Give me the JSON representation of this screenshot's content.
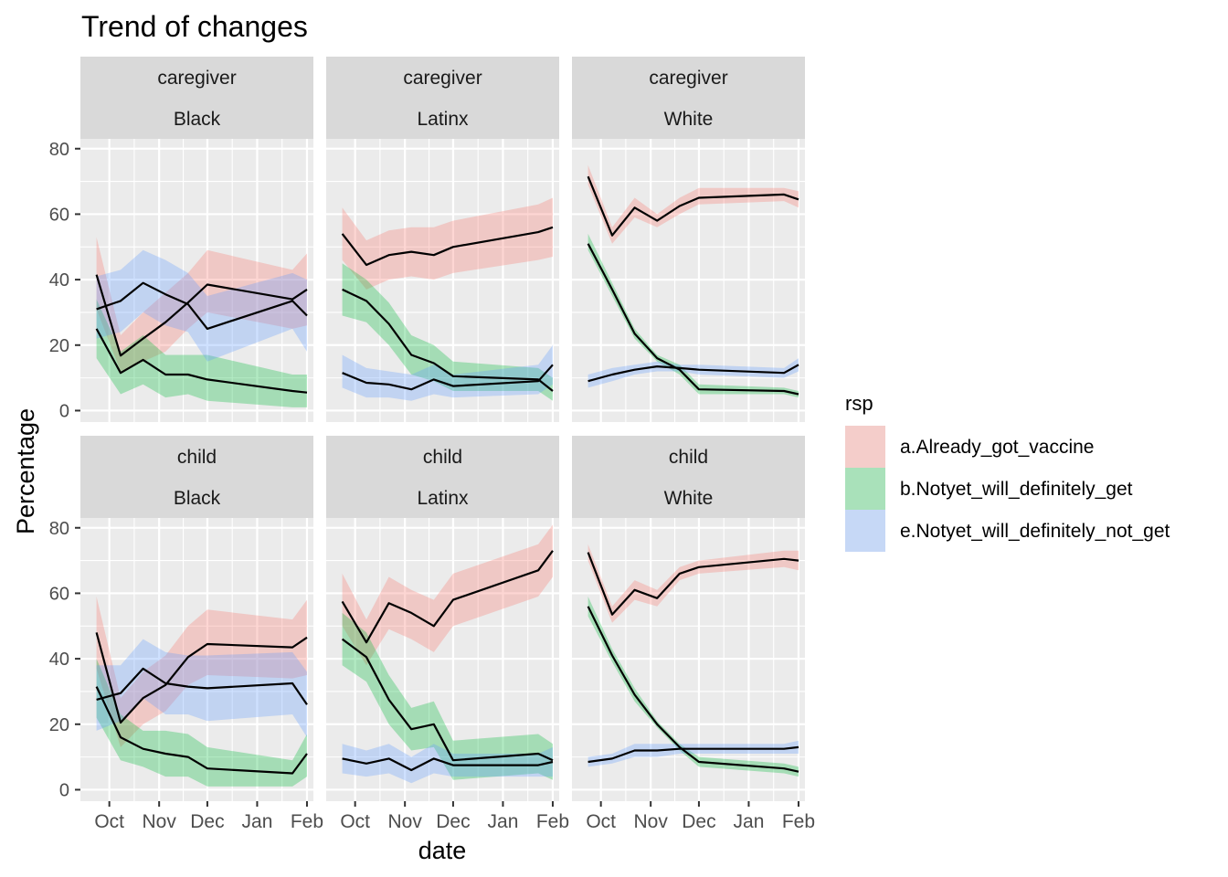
{
  "chart_data": {
    "type": "area",
    "title": "Trend of changes",
    "xlabel": "date",
    "ylabel": "Percentage",
    "x_ticks": [
      "Oct",
      "Nov",
      "Dec",
      "Jan",
      "Feb"
    ],
    "x_tick_dates": [
      "2021-10-01",
      "2021-11-01",
      "2021-12-01",
      "2022-01-01",
      "2022-02-01"
    ],
    "xlim": [
      "2021-09-13",
      "2022-02-05"
    ],
    "y_ticks": [
      0,
      20,
      40,
      60,
      80
    ],
    "ylim": [
      -3.5,
      83
    ],
    "grid": true,
    "legend": {
      "title": "rsp",
      "position": "right",
      "entries": [
        {
          "key": "a",
          "label": "a.Already_got_vaccine",
          "color": "#F8766D"
        },
        {
          "key": "b",
          "label": "b.Notyet_will_definitely_get",
          "color": "#00BA38"
        },
        {
          "key": "e",
          "label": "e.Notyet_will_definitely_not_get",
          "color": "#619CFF"
        }
      ]
    },
    "ribbon_alpha": 0.3,
    "line_color": "#000000",
    "panels": [
      {
        "strip_top": "caregiver",
        "strip_bottom": "Black",
        "x": [
          "2021-09-23",
          "2021-10-08",
          "2021-10-22",
          "2021-11-05",
          "2021-11-19",
          "2021-12-01",
          "2022-01-23",
          "2022-02-01"
        ],
        "series": [
          {
            "key": "a",
            "values": [
              41.5,
              16.8,
              22,
              27,
              33,
              38.5,
              34,
              37
            ],
            "lower": [
              31,
              12,
              15,
              18,
              25,
              30,
              25,
              26
            ],
            "upper": [
              53,
              23,
              30,
              36,
              42,
              49,
              43,
              48
            ]
          },
          {
            "key": "b",
            "values": [
              25,
              11.5,
              15.5,
              11,
              11,
              9.5,
              6,
              5.5
            ],
            "lower": [
              16,
              5,
              8,
              4,
              5,
              3,
              1,
              1
            ],
            "upper": [
              34,
              18,
              23,
              17,
              17,
              17,
              11,
              11
            ]
          },
          {
            "key": "e",
            "values": [
              31,
              33.5,
              39,
              35.5,
              32.5,
              25,
              33.5,
              29
            ],
            "lower": [
              22,
              24,
              30,
              26,
              24,
              15,
              25,
              18
            ],
            "upper": [
              41,
              43,
              49,
              46,
              42,
              35,
              42,
              40
            ]
          }
        ]
      },
      {
        "strip_top": "caregiver",
        "strip_bottom": "Latinx",
        "x": [
          "2021-09-23",
          "2021-10-08",
          "2021-10-22",
          "2021-11-05",
          "2021-11-19",
          "2021-12-01",
          "2022-01-23",
          "2022-02-01"
        ],
        "series": [
          {
            "key": "a",
            "values": [
              54,
              44.5,
              47.5,
              48.5,
              47.5,
              50,
              54.5,
              56
            ],
            "lower": [
              46,
              37,
              40,
              41,
              40,
              42,
              46,
              47
            ],
            "upper": [
              62,
              52,
              55,
              56,
              56,
              58,
              63,
              65
            ]
          },
          {
            "key": "b",
            "values": [
              37,
              33.5,
              26.5,
              17,
              14.5,
              10.5,
              9.5,
              6
            ],
            "lower": [
              29,
              27,
              20,
              11,
              9,
              6,
              6,
              3
            ],
            "upper": [
              45,
              40,
              33,
              23,
              20,
              15,
              13,
              10
            ]
          },
          {
            "key": "e",
            "values": [
              11.5,
              8.5,
              8,
              6.5,
              9.5,
              7.5,
              9,
              14
            ],
            "lower": [
              7,
              4,
              4,
              3,
              5,
              4,
              5,
              8
            ],
            "upper": [
              17,
              13,
              12,
              11,
              14,
              11,
              14,
              20
            ]
          }
        ]
      },
      {
        "strip_top": "caregiver",
        "strip_bottom": "White",
        "x": [
          "2021-09-23",
          "2021-10-08",
          "2021-10-22",
          "2021-11-05",
          "2021-11-19",
          "2021-12-01",
          "2022-01-23",
          "2022-02-01"
        ],
        "series": [
          {
            "key": "a",
            "values": [
              71.5,
              53.5,
              62,
              58,
              62.5,
              65,
              66,
              64.5
            ],
            "lower": [
              69,
              51,
              59,
              56,
              60,
              63,
              64,
              62
            ],
            "upper": [
              75,
              56,
              65,
              60,
              65,
              68,
              68,
              67
            ]
          },
          {
            "key": "b",
            "values": [
              51,
              37,
              23.5,
              16,
              12.5,
              6.5,
              6,
              5
            ],
            "lower": [
              49,
              35,
              22,
              15,
              11,
              5,
              5,
              4
            ],
            "upper": [
              54,
              39,
              25,
              17,
              14,
              8,
              7,
              6
            ]
          },
          {
            "key": "e",
            "values": [
              9,
              11,
              12.5,
              13.5,
              13,
              12.5,
              11.5,
              14
            ],
            "lower": [
              7,
              9,
              11,
              12,
              12,
              11,
              10,
              12
            ],
            "upper": [
              11,
              13,
              14,
              15,
              14,
              14,
              13,
              16
            ]
          }
        ]
      },
      {
        "strip_top": "child",
        "strip_bottom": "Black",
        "x": [
          "2021-09-23",
          "2021-10-08",
          "2021-10-22",
          "2021-11-05",
          "2021-11-19",
          "2021-12-01",
          "2022-01-23",
          "2022-02-01"
        ],
        "series": [
          {
            "key": "a",
            "values": [
              48,
              20.5,
              28,
              32,
              40.5,
              44.5,
              43.5,
              46.5
            ],
            "lower": [
              37,
              13,
              20,
              24,
              32,
              35,
              34,
              35
            ],
            "upper": [
              59,
              28,
              36,
              41,
              50,
              55,
              52,
              58
            ]
          },
          {
            "key": "b",
            "values": [
              31.5,
              16,
              12.5,
              11,
              10,
              6.5,
              5,
              11
            ],
            "lower": [
              22,
              9,
              7,
              4,
              4,
              1,
              1,
              4
            ],
            "upper": [
              40,
              23,
              18,
              18,
              17,
              13,
              9,
              17
            ]
          },
          {
            "key": "e",
            "values": [
              27.5,
              29.5,
              37,
              32.5,
              31.5,
              31,
              32.5,
              26
            ],
            "lower": [
              18,
              21,
              28,
              23,
              23,
              21,
              23,
              16
            ],
            "upper": [
              38,
              38,
              46,
              42,
              41,
              41,
              42,
              36
            ]
          }
        ]
      },
      {
        "strip_top": "child",
        "strip_bottom": "Latinx",
        "x": [
          "2021-09-23",
          "2021-10-08",
          "2021-10-22",
          "2021-11-05",
          "2021-11-19",
          "2021-12-01",
          "2022-01-23",
          "2022-02-01"
        ],
        "series": [
          {
            "key": "a",
            "values": [
              57.5,
              45,
              57,
              54,
              50,
              58,
              67,
              73
            ],
            "lower": [
              50,
              38,
              49,
              46,
              42,
              50,
              59,
              65
            ],
            "upper": [
              66,
              52,
              65,
              61,
              58,
              66,
              75,
              81
            ]
          },
          {
            "key": "b",
            "values": [
              46,
              40.5,
              27.5,
              18.5,
              20,
              9,
              11,
              9
            ],
            "lower": [
              38,
              33,
              20,
              12,
              13,
              3,
              5,
              3
            ],
            "upper": [
              54,
              48,
              35,
              25,
              27,
              15,
              17,
              14
            ]
          },
          {
            "key": "e",
            "values": [
              9.5,
              8,
              9.5,
              6,
              9.5,
              7.5,
              7.5,
              8.5
            ],
            "lower": [
              5,
              4,
              5,
              2,
              5,
              4,
              4,
              4
            ],
            "upper": [
              14,
              12,
              14,
              10,
              14,
              11,
              11,
              13
            ]
          }
        ]
      },
      {
        "strip_top": "child",
        "strip_bottom": "White",
        "x": [
          "2021-09-23",
          "2021-10-08",
          "2021-10-22",
          "2021-11-05",
          "2021-11-19",
          "2021-12-01",
          "2022-01-23",
          "2022-02-01"
        ],
        "series": [
          {
            "key": "a",
            "values": [
              72.5,
              53.5,
              61,
              58.5,
              66,
              68,
              70.5,
              70
            ],
            "lower": [
              70,
              51,
              58,
              56,
              64,
              66,
              68,
              67
            ],
            "upper": [
              75,
              56,
              64,
              61,
              68,
              70,
              73,
              73
            ]
          },
          {
            "key": "b",
            "values": [
              56,
              41,
              29,
              20,
              13,
              8.5,
              6.5,
              5.5
            ],
            "lower": [
              53,
              39,
              27,
              19,
              12,
              7,
              5,
              4
            ],
            "upper": [
              59,
              43,
              31,
              21,
              14,
              10,
              8,
              7
            ]
          },
          {
            "key": "e",
            "values": [
              8.5,
              9.5,
              12,
              12,
              12.5,
              12.5,
              12.5,
              13
            ],
            "lower": [
              7,
              8,
              10,
              10,
              11,
              11,
              11,
              11
            ],
            "upper": [
              10,
              11,
              14,
              14,
              14,
              14,
              14,
              15
            ]
          }
        ]
      }
    ]
  }
}
